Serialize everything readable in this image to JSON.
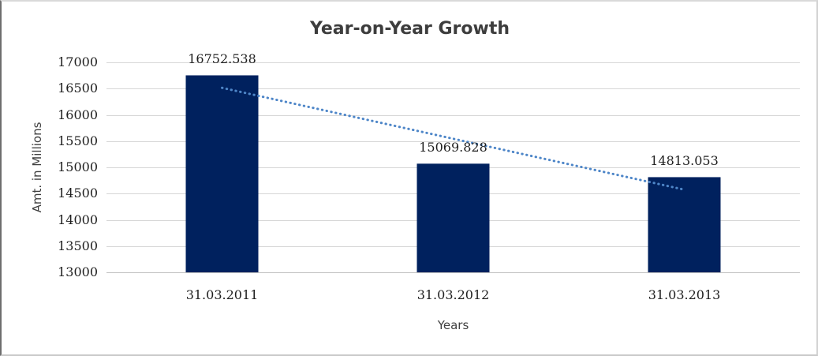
{
  "chart_data": {
    "type": "bar",
    "title": "Year-on-Year Growth",
    "xlabel": "Years",
    "ylabel": "Amt. in Millions",
    "categories": [
      "31.03.2011",
      "31.03.2012",
      "31.03.2013"
    ],
    "values": [
      16752.538,
      15069.828,
      14813.053
    ],
    "data_labels": [
      "16752.538",
      "15069.828",
      "14813.053"
    ],
    "ylim": [
      13000,
      17000
    ],
    "yticks": [
      13000,
      13500,
      14000,
      14500,
      15000,
      15500,
      16000,
      16500,
      17000
    ],
    "grid": "horizontal",
    "legend": "none",
    "colors": {
      "bar": "#00215E",
      "trendline": "#4E86C8",
      "gridline": "#D6D6D6",
      "axis_line": "#C0C0C0",
      "tick_text": "#1F1F1F",
      "title_text": "#3D3D3D"
    },
    "trendline": {
      "style": "dotted",
      "start": {
        "category_index": 0,
        "value": 16515
      },
      "end": {
        "category_index": 2,
        "value": 14575
      }
    }
  }
}
